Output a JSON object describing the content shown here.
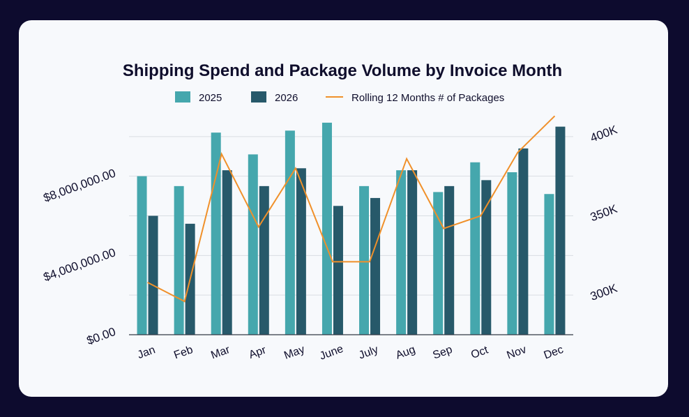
{
  "colors": {
    "frame": "#0d0b2e",
    "card": "#f7f9fc",
    "series_2025": "#45a7ad",
    "series_2026": "#27596a",
    "line": "#f0902a",
    "text": "#0f0e2c",
    "grid": "#d9dde3",
    "axis": "#333a44"
  },
  "chart_data": {
    "type": "bar",
    "title": "Shipping Spend and Package Volume by Invoice Month",
    "categories": [
      "Jan",
      "Feb",
      "Mar",
      "Apr",
      "May",
      "June",
      "July",
      "Aug",
      "Sep",
      "Oct",
      "Nov",
      "Dec"
    ],
    "series": [
      {
        "name": "2025",
        "values": [
          8000000,
          7500000,
          10200000,
          9100000,
          10300000,
          10700000,
          7500000,
          8300000,
          7200000,
          8700000,
          8200000,
          7100000
        ]
      },
      {
        "name": "2026",
        "values": [
          6000000,
          5600000,
          8300000,
          7500000,
          8400000,
          6500000,
          6900000,
          8300000,
          7500000,
          7800000,
          9400000,
          10500000
        ]
      }
    ],
    "line_series": {
      "name": "Rolling 12 Months # of Packages",
      "axis": "right",
      "values": [
        308000,
        296000,
        389000,
        343000,
        380000,
        321000,
        321000,
        386000,
        342000,
        350000,
        390000,
        413000
      ]
    },
    "y_left": {
      "ylim": [
        0,
        12000000
      ],
      "ticks": [
        0,
        4000000,
        8000000
      ],
      "tick_labels": [
        "$0.00",
        "$4,000,000.00",
        "$8,000,000.00"
      ]
    },
    "y_right": {
      "ylim": [
        275000,
        425000
      ],
      "ticks": [
        300000,
        350000,
        400000
      ],
      "tick_labels": [
        "300K",
        "350K",
        "400K"
      ]
    },
    "grid": true,
    "legend": "top-center",
    "legend_labels": [
      "2025",
      "2026",
      "Rolling 12 Months # of Packages"
    ]
  }
}
